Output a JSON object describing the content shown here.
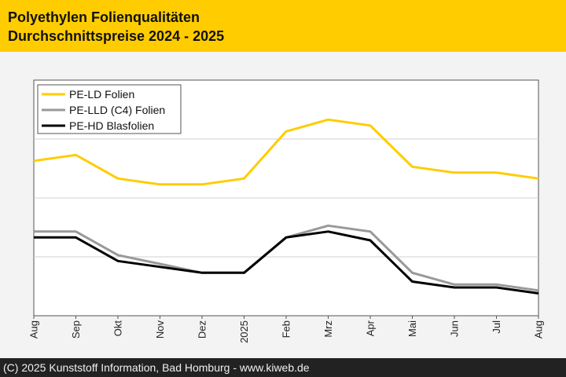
{
  "header": {
    "title_line1": "Polyethylen Folienqualitäten",
    "title_line2": "Durchschnittspreise 2024 - 2025"
  },
  "footer": {
    "text": "(C) 2025 Kunststoff Information, Bad Homburg - www.kiweb.de"
  },
  "colors": {
    "header_bg": "#ffcc00",
    "pe_ld": "#ffcc00",
    "pe_lld": "#999999",
    "pe_hd": "#000000",
    "footer_bg": "#222222"
  },
  "chart_data": {
    "type": "line",
    "title": "Polyethylen Folienqualitäten Durchschnittspreise 2024 - 2025",
    "xlabel": "",
    "ylabel": "",
    "categories": [
      "Aug",
      "Sep",
      "Okt",
      "Nov",
      "Dez",
      "2025",
      "Feb",
      "Mrz",
      "Apr",
      "Mai",
      "Jun",
      "Jul",
      "Aug"
    ],
    "ylim": [
      0,
      4
    ],
    "y_ticks_labeled": false,
    "grid": "horizontal",
    "legend_position": "top-left",
    "series": [
      {
        "name": "PE-LD Folien",
        "color": "#ffcc00",
        "values": [
          2.63,
          2.73,
          2.33,
          2.23,
          2.23,
          2.33,
          3.13,
          3.33,
          3.23,
          2.53,
          2.43,
          2.43,
          2.33
        ]
      },
      {
        "name": "PE-LLD (C4) Folien",
        "color": "#999999",
        "values": [
          1.43,
          1.43,
          1.03,
          0.88,
          0.73,
          0.73,
          1.33,
          1.53,
          1.43,
          0.73,
          0.53,
          0.53,
          0.43
        ]
      },
      {
        "name": "PE-HD Blasfolien",
        "color": "#000000",
        "values": [
          1.33,
          1.33,
          0.93,
          0.83,
          0.73,
          0.73,
          1.33,
          1.43,
          1.28,
          0.58,
          0.48,
          0.48,
          0.38
        ]
      }
    ]
  }
}
